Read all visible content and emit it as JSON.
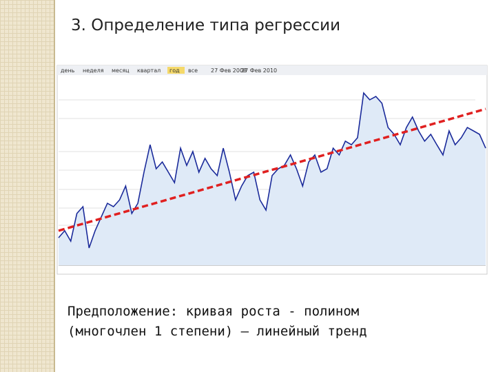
{
  "slide_title": "3. Определение типа регрессии",
  "toolbar": {
    "buttons": [
      "день",
      "неделя",
      "месяц",
      "квартал",
      "год",
      "все"
    ],
    "active": "год",
    "date_from": "27 Фев 2008",
    "date_to": "27 Фев 2010"
  },
  "chart_data": {
    "type": "line",
    "ylim": [
      0,
      100
    ],
    "series": [
      {
        "color": "#1a2a9a",
        "fill": "#dfeaf7",
        "values": [
          14.5,
          18.2,
          12.7,
          27.3,
          30.9,
          9.1,
          18.2,
          25.5,
          32.7,
          30.9,
          34.5,
          41.8,
          27.3,
          32.7,
          49.1,
          63.6,
          50.9,
          54.5,
          49.1,
          43.6,
          61.8,
          52.7,
          60,
          49.1,
          56.4,
          50.9,
          47.3,
          61.8,
          49.1,
          34.5,
          41.8,
          47.3,
          49.1,
          34.5,
          29.1,
          47.3,
          50.9,
          52.7,
          58.2,
          50.9,
          41.8,
          54.5,
          58.2,
          49.1,
          50.9,
          61.8,
          58.2,
          65.5,
          63.6,
          67.3,
          90.9,
          87.3,
          89.1,
          85.5,
          72.7,
          69.1,
          63.6,
          72.7,
          78.2,
          70.9,
          65.5,
          69.1,
          63.6,
          58.2,
          70.9,
          63.6,
          67.3,
          72.7,
          70.9,
          69.1,
          61.8
        ]
      },
      {
        "color": "#e02020",
        "dashed": true,
        "values": [
          18.2,
          82.5
        ]
      }
    ]
  },
  "caption": [
    "Предположение: кривая роста - полином",
    "(многочлен 1 степени) – линейный тренд"
  ]
}
